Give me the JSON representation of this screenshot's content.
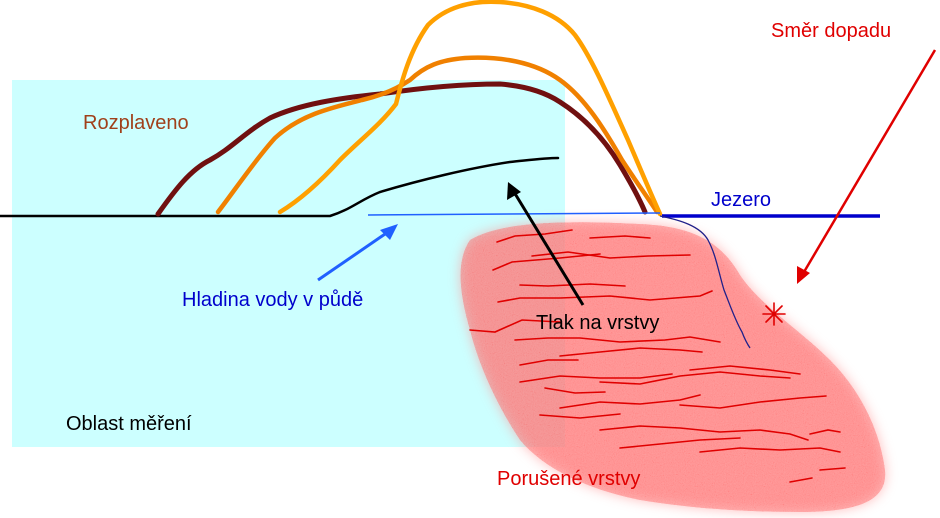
{
  "labels": {
    "rozplaveno": "Rozplaveno",
    "smer_dopadu": "Směr dopadu",
    "jezero": "Jezero",
    "hladina": "Hladina vody v půdě",
    "tlak": "Tlak na vrstvy",
    "oblast": "Oblast měření",
    "porusene": "Porušené vrstvy"
  },
  "colors": {
    "measurement_area": "#ccffff",
    "rozplaveno_text": "#a0401a",
    "outline_dark": "#701010",
    "outline_mid": "#f08000",
    "outline_light": "#ffa000",
    "ground": "#000000",
    "lake": "#0000cc",
    "water_table": "#2060ff",
    "impact": "#e00000",
    "damaged_layers": "#ff7a7a",
    "crack_lines": "#e00000",
    "label_blue": "#0000cc",
    "label_red": "#e00000",
    "label_black": "#000000"
  },
  "icons": {
    "impact_marker": "asterisk-icon"
  }
}
